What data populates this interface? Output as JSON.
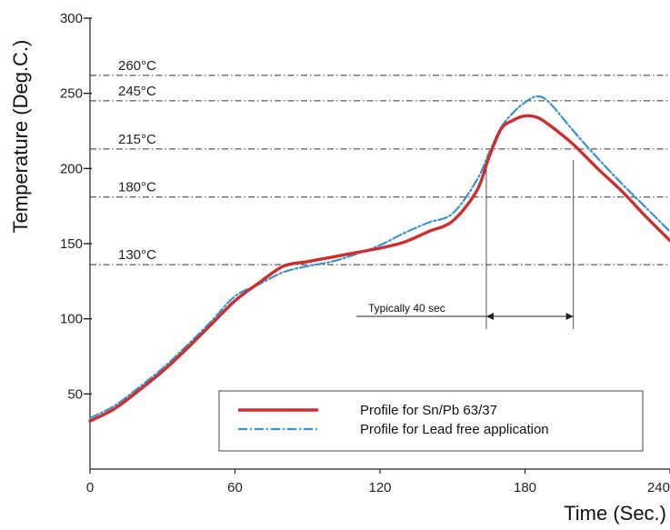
{
  "chart_data": {
    "type": "line",
    "xlabel": "Time (Sec.)",
    "ylabel": "Temperature (Deg.C.)",
    "xlim": [
      0,
      240
    ],
    "ylim": [
      0,
      300
    ],
    "x_ticks": [
      "0",
      "60",
      "120",
      "180",
      "240"
    ],
    "y_ticks": [
      "50",
      "100",
      "150",
      "200",
      "250",
      "300"
    ],
    "reference_lines": [
      {
        "label": "260°C",
        "y": 262
      },
      {
        "label": "245°C",
        "y": 245
      },
      {
        "label": "215°C",
        "y": 213
      },
      {
        "label": "180°C",
        "y": 181
      },
      {
        "label": "130°C",
        "y": 136
      }
    ],
    "annotation": {
      "label": "Typically 40 sec",
      "x_start": 164,
      "x_end": 200
    },
    "series": [
      {
        "name": "Profile for Sn/Pb 63/37",
        "color": "#cc2f2f",
        "x": [
          0,
          10,
          20,
          30,
          40,
          50,
          60,
          70,
          80,
          90,
          100,
          110,
          120,
          130,
          140,
          150,
          160,
          165,
          170,
          175,
          180,
          185,
          190,
          200,
          210,
          220,
          230,
          240
        ],
        "y": [
          32,
          40,
          52,
          65,
          80,
          96,
          112,
          124,
          135,
          138,
          141,
          144,
          147,
          151,
          158,
          165,
          185,
          207,
          226,
          232,
          235,
          234,
          229,
          216,
          200,
          185,
          168,
          152
        ]
      },
      {
        "name": "Profile for Lead free application",
        "color": "#3a92d0",
        "x": [
          0,
          10,
          20,
          30,
          40,
          50,
          60,
          70,
          80,
          90,
          100,
          110,
          120,
          130,
          140,
          150,
          160,
          165,
          170,
          175,
          180,
          185,
          190,
          200,
          210,
          220,
          230,
          240
        ],
        "y": [
          34,
          42,
          54,
          67,
          82,
          98,
          115,
          123,
          131,
          135,
          138,
          143,
          149,
          157,
          164,
          170,
          192,
          210,
          227,
          237,
          244,
          248,
          244,
          225,
          207,
          190,
          174,
          158
        ]
      }
    ]
  }
}
